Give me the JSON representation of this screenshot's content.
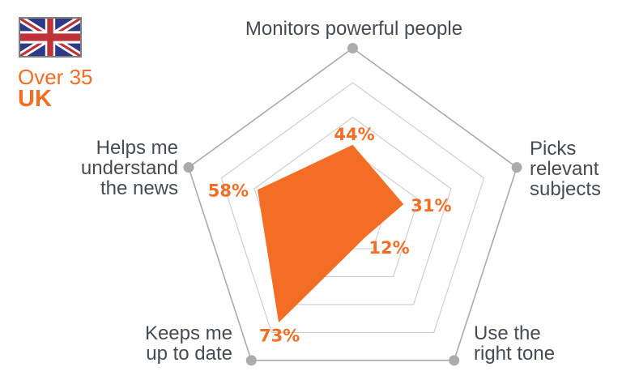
{
  "header": {
    "flag_name": "uk-flag",
    "group": "Over 35",
    "region": "UK"
  },
  "colors": {
    "accent_orange": "#f36e24",
    "axis_text": "#454c54",
    "outer_ring": "#ababab",
    "inner_ring": "#cdcdcd",
    "vertex_dot": "#ababab",
    "flag_blue": "#2e3a87",
    "flag_red": "#bf3338",
    "flag_white": "#ffffff",
    "flag_border": "#7f7f7f"
  },
  "chart_data": {
    "type": "radar",
    "title": "Over 35 UK",
    "grid_shape": "pentagon",
    "max": 100,
    "rings_percent": [
      20,
      40,
      60,
      80,
      100
    ],
    "legend": "none",
    "axes": [
      {
        "label": "Monitors powerful people",
        "value": 44,
        "value_label": "44%"
      },
      {
        "label": "Picks\nrelevant\nsubjects",
        "value": 31,
        "value_label": "31%"
      },
      {
        "label": "Use the\nright tone",
        "value": 12,
        "value_label": "12%"
      },
      {
        "label": "Keeps me\nup to date",
        "value": 73,
        "value_label": "73%"
      },
      {
        "label": "Helps me\nunderstand\nthe news",
        "value": 58,
        "value_label": "58%"
      }
    ],
    "series": [
      {
        "name": "Over 35 UK",
        "values": [
          44,
          31,
          12,
          73,
          58
        ]
      }
    ]
  }
}
